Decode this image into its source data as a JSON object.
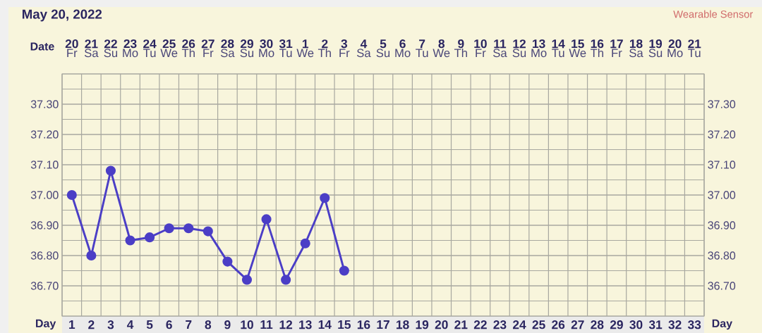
{
  "chart_data": {
    "type": "line",
    "title": "May 20, 2022",
    "xlabel": "Day",
    "x2label": "Date",
    "annotations": [
      "Wearable Sensor",
      "Fr",
      "Sa",
      "Su",
      "Mo",
      "Tu",
      "We",
      "Th",
      "Fr",
      "Sa",
      "Su",
      "Mo",
      "Tu",
      "We",
      "Th",
      "Fr",
      "Sa",
      "Su",
      "Mo",
      "Tu",
      "We",
      "Th",
      "Fr",
      "Sa",
      "Su",
      "Mo",
      "Tu",
      "We",
      "Th",
      "Fr",
      "Sa",
      "Su",
      "Mo",
      "Tu"
    ],
    "xlim": [
      0.5,
      33.5
    ],
    "xticks": [
      1,
      2,
      3,
      4,
      5,
      6,
      7,
      8,
      9,
      10,
      11,
      12,
      13,
      14,
      15,
      16,
      17,
      18,
      19,
      20,
      21,
      22,
      23,
      24,
      25,
      26,
      27,
      28,
      29,
      30,
      31,
      32,
      33
    ],
    "x2lim": [
      "2022-05-19T12:00",
      "2022-06-21T12:00"
    ],
    "x2ticks": [
      {
        "value": "2022-05-20",
        "label": "20"
      },
      {
        "value": "2022-05-21",
        "label": "21"
      },
      {
        "value": "2022-05-22",
        "label": "22"
      },
      {
        "value": "2022-05-23",
        "label": "23"
      },
      {
        "value": "2022-05-24",
        "label": "24"
      },
      {
        "value": "2022-05-25",
        "label": "25"
      },
      {
        "value": "2022-05-26",
        "label": "26"
      },
      {
        "value": "2022-05-27",
        "label": "27"
      },
      {
        "value": "2022-05-28",
        "label": "28"
      },
      {
        "value": "2022-05-29",
        "label": "29"
      },
      {
        "value": "2022-05-30",
        "label": "30"
      },
      {
        "value": "2022-05-31",
        "label": "31"
      },
      {
        "value": "2022-06-01",
        "label": "1"
      },
      {
        "value": "2022-06-02",
        "label": "2"
      },
      {
        "value": "2022-06-03",
        "label": "3"
      },
      {
        "value": "2022-06-04",
        "label": "4"
      },
      {
        "value": "2022-06-05",
        "label": "5"
      },
      {
        "value": "2022-06-06",
        "label": "6"
      },
      {
        "value": "2022-06-07",
        "label": "7"
      },
      {
        "value": "2022-06-08",
        "label": "8"
      },
      {
        "value": "2022-06-09",
        "label": "9"
      },
      {
        "value": "2022-06-10",
        "label": "10"
      },
      {
        "value": "2022-06-11",
        "label": "11"
      },
      {
        "value": "2022-06-12",
        "label": "12"
      },
      {
        "value": "2022-06-13",
        "label": "13"
      },
      {
        "value": "2022-06-14",
        "label": "14"
      },
      {
        "value": "2022-06-15",
        "label": "15"
      },
      {
        "value": "2022-06-16",
        "label": "16"
      },
      {
        "value": "2022-06-17",
        "label": "17"
      },
      {
        "value": "2022-06-18",
        "label": "18"
      },
      {
        "value": "2022-06-19",
        "label": "19"
      },
      {
        "value": "2022-06-20",
        "label": "20"
      },
      {
        "value": "2022-06-21",
        "label": "21"
      }
    ],
    "ylim": [
      36.6,
      37.4
    ],
    "yticks": [
      {
        "value": 36.7,
        "label": "36.70"
      },
      {
        "value": 36.8,
        "label": "36.80"
      },
      {
        "value": 36.9,
        "label": "36.90"
      },
      {
        "value": 37.0,
        "label": "37.00"
      },
      {
        "value": 37.1,
        "label": "37.10"
      },
      {
        "value": 37.2,
        "label": "37.20"
      },
      {
        "value": 37.3,
        "label": "37.30"
      }
    ],
    "y2lim": [
      36.6,
      37.4
    ],
    "y2ticks": [
      {
        "value": 36.7,
        "label": "36.70"
      },
      {
        "value": 36.8,
        "label": "36.80"
      },
      {
        "value": 36.9,
        "label": "36.90"
      },
      {
        "value": 37.0,
        "label": "37.00"
      },
      {
        "value": 37.1,
        "label": "37.10"
      },
      {
        "value": 37.2,
        "label": "37.20"
      },
      {
        "value": 37.3,
        "label": "37.30"
      }
    ],
    "grid": true,
    "marker": "circle",
    "line_style": "solid",
    "series": [
      {
        "color": "#4b3ec6",
        "x": [
          1,
          2,
          3,
          4,
          5,
          6,
          7,
          8,
          9,
          10,
          11,
          12,
          13,
          14,
          15
        ],
        "values": [
          37.0,
          36.8,
          37.08,
          36.85,
          36.86,
          36.89,
          36.89,
          36.88,
          36.78,
          36.72,
          36.92,
          36.72,
          36.84,
          36.99,
          36.75
        ]
      }
    ]
  }
}
